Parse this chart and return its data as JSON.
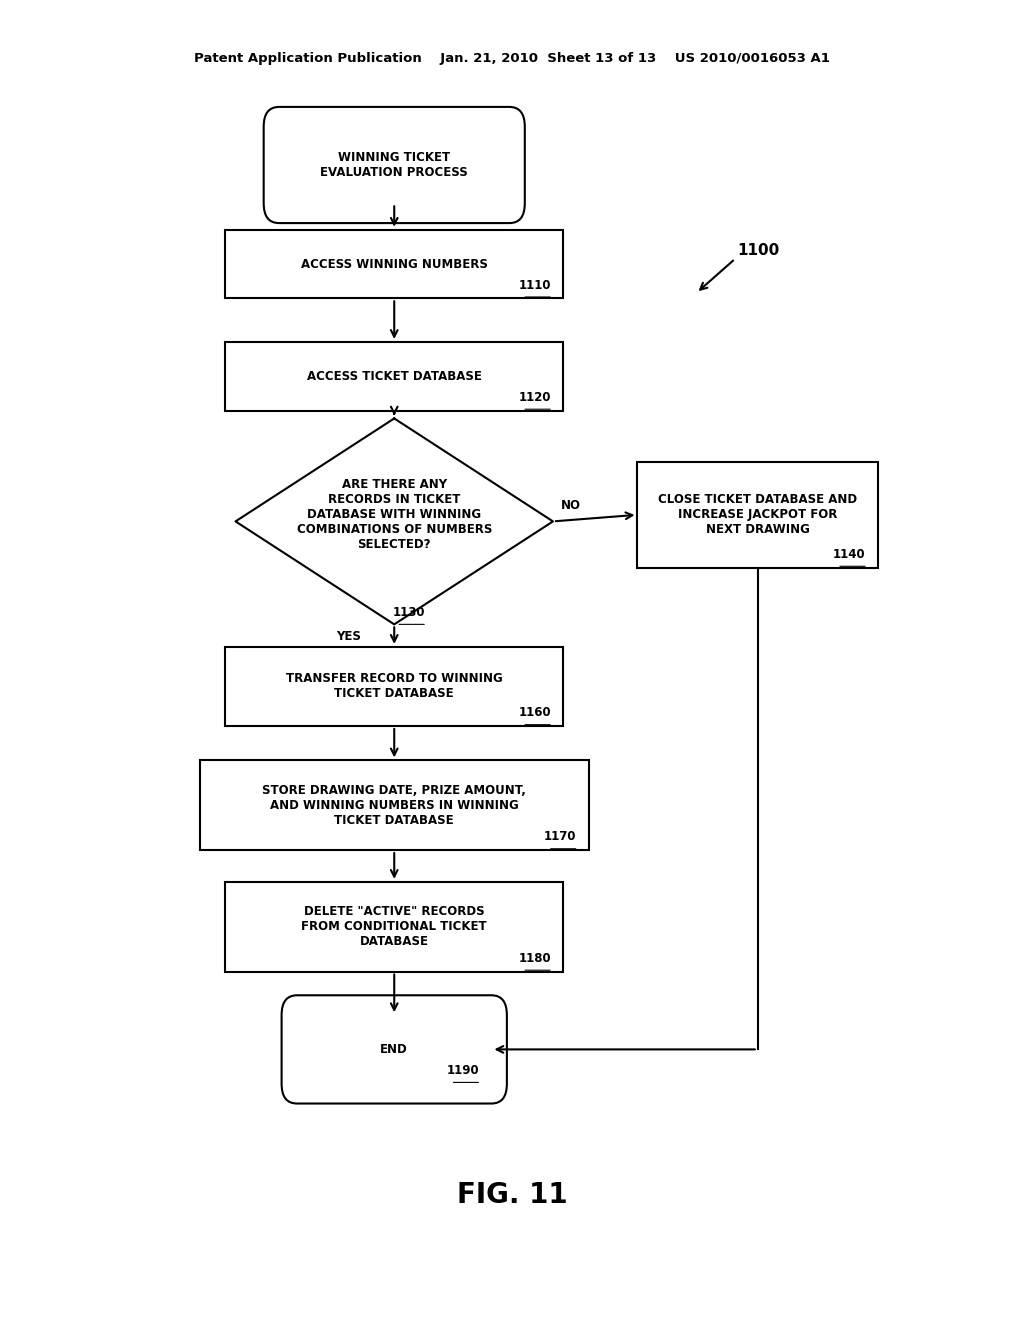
{
  "bg_color": "#ffffff",
  "header_text": "Patent Application Publication    Jan. 21, 2010  Sheet 13 of 13    US 2010/0016053 A1",
  "fig_label": "FIG. 11",
  "diagram_ref": "1100",
  "text_color": "#000000",
  "line_color": "#000000",
  "font_size_node": 8.5,
  "font_size_ref": 8.5,
  "font_size_header": 9.5,
  "font_size_fig": 20,
  "font_size_diag_ref": 11
}
